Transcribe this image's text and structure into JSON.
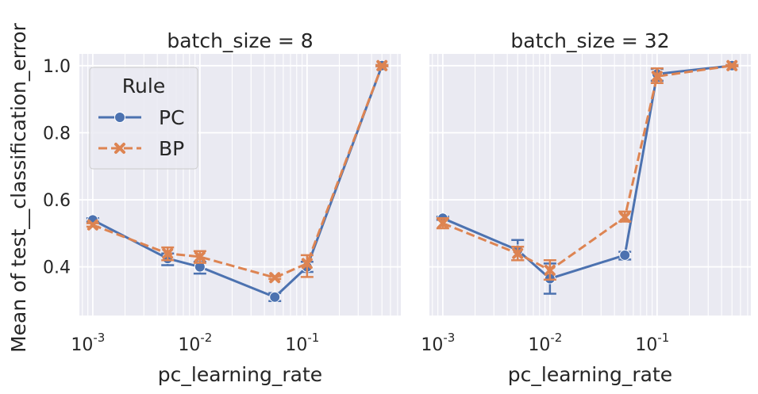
{
  "chart_data": [
    {
      "type": "line",
      "title": "batch_size = 8",
      "xlabel": "pc_learning_rate",
      "ylabel": "Mean of test__classification_error",
      "xscale": "log",
      "xlim": [
        0.00075,
        0.75
      ],
      "ylim": [
        0.255,
        1.035
      ],
      "yticks": [
        "0.4",
        "0.6",
        "0.8",
        "1.0"
      ],
      "xticks": [
        "10^-3",
        "10^-2",
        "10^-1"
      ],
      "grid": true,
      "legend": {
        "title": "Rule",
        "placement": "top-left",
        "entries": [
          "PC",
          "BP"
        ]
      },
      "series": [
        {
          "name": "PC",
          "color": "#4c72b0",
          "style": "solid",
          "marker": "circle",
          "x": [
            0.001,
            0.005,
            0.01,
            0.05,
            0.1,
            0.5
          ],
          "y": [
            0.54,
            0.425,
            0.4,
            0.31,
            0.4,
            1.0
          ],
          "err_low": [
            0.535,
            0.405,
            0.38,
            0.298,
            0.385,
            0.998
          ],
          "err_high": [
            0.545,
            0.44,
            0.415,
            0.322,
            0.415,
            1.002
          ]
        },
        {
          "name": "BP",
          "color": "#dd8452",
          "style": "dashed",
          "marker": "x",
          "x": [
            0.001,
            0.005,
            0.01,
            0.05,
            0.1,
            0.5
          ],
          "y": [
            0.525,
            0.44,
            0.43,
            0.368,
            0.41,
            1.0
          ],
          "err_low": [
            0.52,
            0.42,
            0.412,
            0.364,
            0.37,
            0.998
          ],
          "err_high": [
            0.53,
            0.458,
            0.447,
            0.372,
            0.435,
            1.002
          ]
        }
      ]
    },
    {
      "type": "line",
      "title": "batch_size = 32",
      "xlabel": "pc_learning_rate",
      "ylabel": "",
      "xscale": "log",
      "xlim": [
        0.00075,
        0.75
      ],
      "ylim": [
        0.255,
        1.035
      ],
      "xticks": [
        "10^-3",
        "10^-2",
        "10^-1"
      ],
      "grid": true,
      "series": [
        {
          "name": "PC",
          "color": "#4c72b0",
          "style": "solid",
          "marker": "circle",
          "x": [
            0.001,
            0.005,
            0.01,
            0.05,
            0.1,
            0.5
          ],
          "y": [
            0.545,
            0.45,
            0.365,
            0.435,
            0.975,
            1.0
          ],
          "err_low": [
            0.54,
            0.42,
            0.32,
            0.422,
            0.955,
            0.998
          ],
          "err_high": [
            0.55,
            0.48,
            0.41,
            0.445,
            0.99,
            1.002
          ]
        },
        {
          "name": "BP",
          "color": "#dd8452",
          "style": "dashed",
          "marker": "x",
          "x": [
            0.001,
            0.005,
            0.01,
            0.05,
            0.1,
            0.5
          ],
          "y": [
            0.53,
            0.44,
            0.39,
            0.548,
            0.968,
            1.0
          ],
          "err_low": [
            0.515,
            0.42,
            0.362,
            0.535,
            0.948,
            0.998
          ],
          "err_high": [
            0.545,
            0.46,
            0.42,
            0.565,
            0.992,
            1.002
          ]
        }
      ]
    }
  ]
}
